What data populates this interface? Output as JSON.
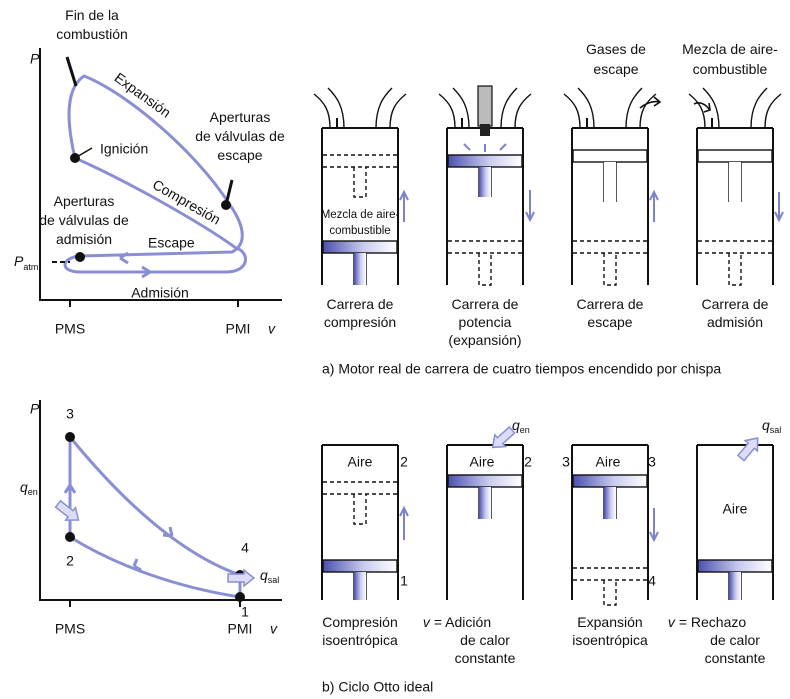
{
  "figure_a": {
    "pv": {
      "p_label": "P",
      "v_label": "v",
      "pms": "PMS",
      "pmi": "PMI",
      "p_atm": {
        "symbol": "P",
        "subscript": "atm"
      },
      "fin_combustion": [
        "Fin de la",
        "combustión"
      ],
      "expansion": "Expansión",
      "ignicion": "Ignición",
      "apertura_escape": [
        "Aperturas",
        "de válvulas de",
        "escape"
      ],
      "compresion": "Compresión",
      "apertura_admision": [
        "Aperturas",
        "de válvulas de",
        "admisión"
      ],
      "escape": "Escape",
      "admision": "Admisión"
    },
    "cylinders": {
      "mezcla_interior": [
        "Mezcla de aire-",
        "combustible"
      ],
      "gases_escape": [
        "Gases de",
        "escape"
      ],
      "mezcla_entrada": [
        "Mezcla de aire-",
        "combustible"
      ]
    },
    "captions": [
      [
        "Carrera de",
        "compresión"
      ],
      [
        "Carrera de",
        "potencia",
        "(expansión)"
      ],
      [
        "Carrera de",
        "escape"
      ],
      [
        "Carrera de",
        "admisión"
      ]
    ],
    "title": "a) Motor real de carrera de cuatro tiempos encendido por chispa"
  },
  "figure_b": {
    "pv": {
      "p_label": "P",
      "v_label": "v",
      "pms": "PMS",
      "pmi": "PMI",
      "points": [
        "1",
        "2",
        "3",
        "4"
      ],
      "q_en": {
        "symbol": "q",
        "subscript": "en"
      },
      "q_sal": {
        "symbol": "q",
        "subscript": "sal"
      }
    },
    "cylinders": [
      {
        "gas": "Aire",
        "marks": [
          "2",
          "1"
        ]
      },
      {
        "gas": "Aire",
        "marks": [
          "2"
        ],
        "heat": {
          "symbol": "q",
          "subscript": "en"
        }
      },
      {
        "gas": "Aire",
        "marks": [
          "3",
          "3",
          "4"
        ]
      },
      {
        "gas": "Aire",
        "heat": {
          "symbol": "q",
          "subscript": "sal"
        }
      }
    ],
    "captions": [
      [
        {
          "text": "Compresión"
        },
        {
          "text": "isoentrópica"
        }
      ],
      [
        {
          "italic": "v",
          "text": "= Adición"
        },
        {
          "text": "de calor"
        },
        {
          "text": "constante"
        }
      ],
      [
        {
          "text": "Expansión"
        },
        {
          "text": "isoentrópica"
        }
      ],
      [
        {
          "italic": "v",
          "text": "= Rechazo"
        },
        {
          "text": "de calor"
        },
        {
          "text": "constante"
        }
      ]
    ],
    "title": "b) Ciclo Otto ideal"
  }
}
